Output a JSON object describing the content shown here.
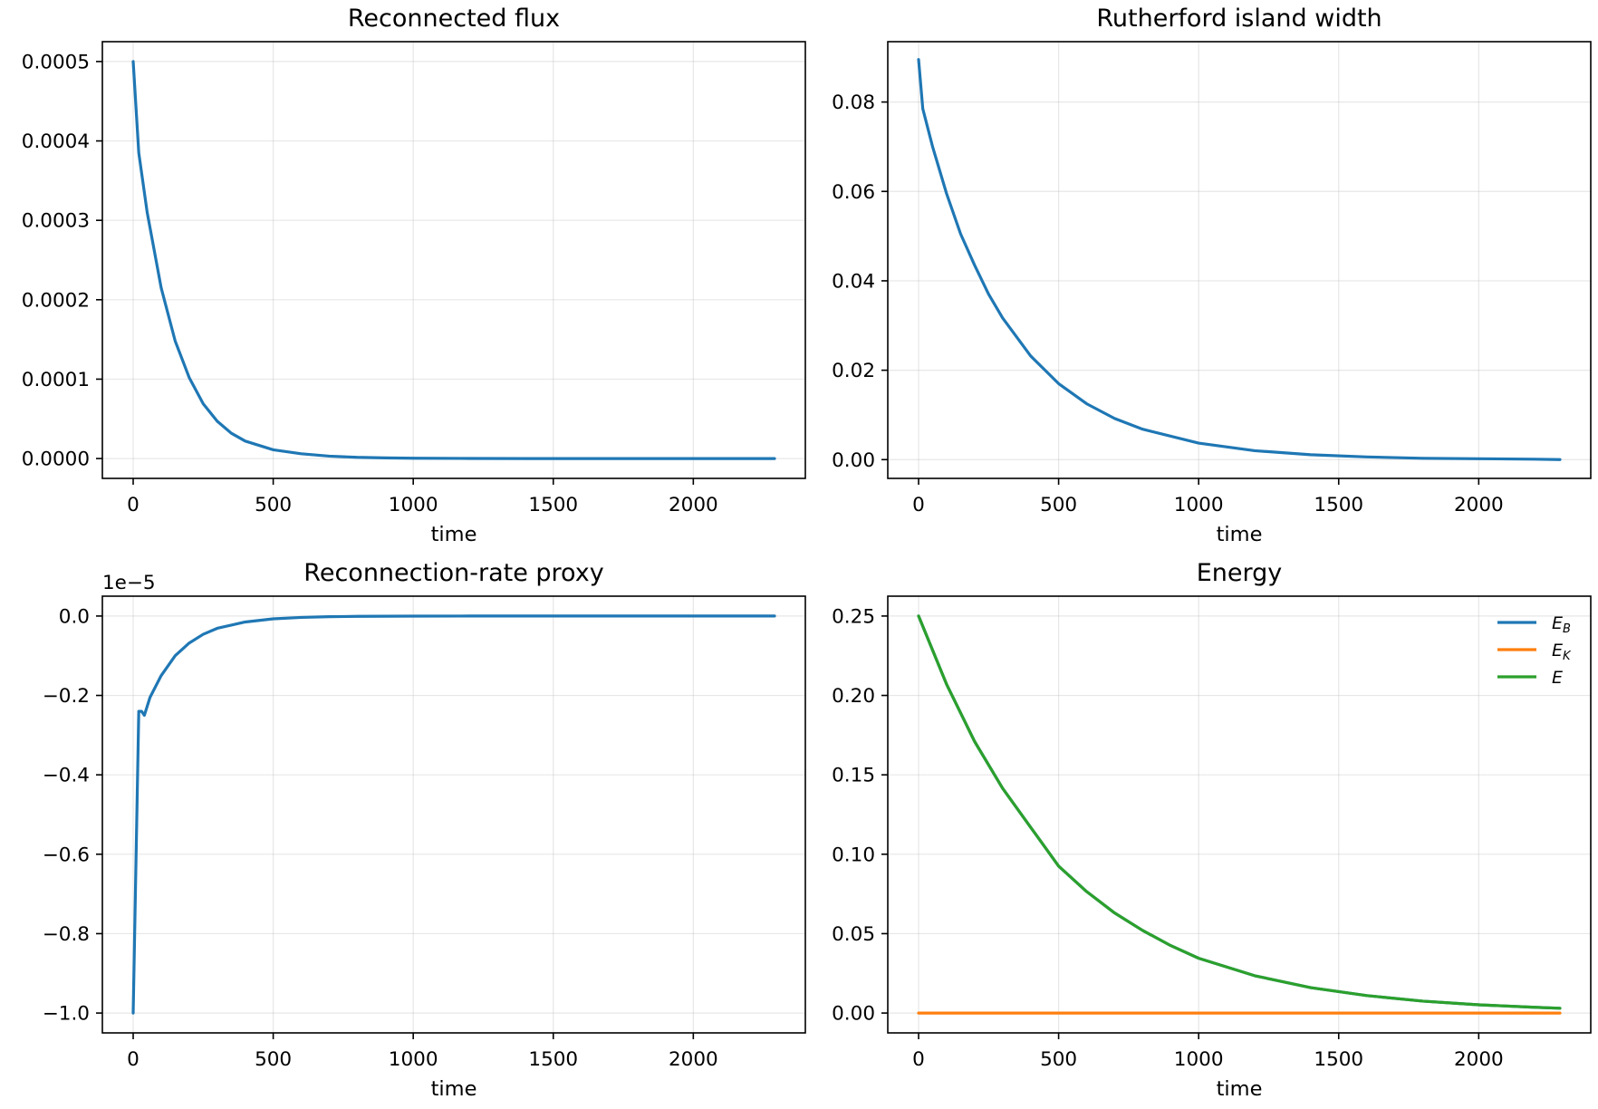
{
  "chart_data": [
    {
      "type": "line",
      "title": "Reconnected flux",
      "xlabel": "time",
      "ylabel": "",
      "xlim": [
        -110,
        2400
      ],
      "ylim": [
        -2.5e-05,
        0.000525
      ],
      "xticks": [
        0,
        500,
        1000,
        1500,
        2000
      ],
      "xtick_labels": [
        "0",
        "500",
        "1000",
        "1500",
        "2000"
      ],
      "yticks": [
        0,
        0.0001,
        0.0002,
        0.0003,
        0.0004,
        0.0005
      ],
      "ytick_labels": [
        "0.0000",
        "0.0001",
        "0.0002",
        "0.0003",
        "0.0004",
        "0.0005"
      ],
      "offset_text": "",
      "grid": true,
      "series": [
        {
          "color": "#1f77b4",
          "x": [
            0,
            20,
            50,
            100,
            150,
            200,
            250,
            300,
            350,
            400,
            500,
            600,
            700,
            800,
            900,
            1000,
            1200,
            1400,
            1600,
            1800,
            2000,
            2200,
            2290
          ],
          "y": [
            0.0005,
            0.000385,
            0.00031,
            0.000215,
            0.000148,
            0.000102,
            6.9e-05,
            4.7e-05,
            3.2e-05,
            2.2e-05,
            1.1e-05,
            6e-06,
            3e-06,
            1.5e-06,
            8e-07,
            4e-07,
            1e-07,
            0,
            0,
            0,
            0,
            0,
            0
          ]
        }
      ]
    },
    {
      "type": "line",
      "title": "Rutherford island width",
      "xlabel": "time",
      "ylabel": "",
      "xlim": [
        -110,
        2400
      ],
      "ylim": [
        -0.0042,
        0.0935
      ],
      "xticks": [
        0,
        500,
        1000,
        1500,
        2000
      ],
      "xtick_labels": [
        "0",
        "500",
        "1000",
        "1500",
        "2000"
      ],
      "yticks": [
        0,
        0.02,
        0.04,
        0.06,
        0.08
      ],
      "ytick_labels": [
        "0.00",
        "0.02",
        "0.04",
        "0.06",
        "0.08"
      ],
      "offset_text": "",
      "grid": true,
      "series": [
        {
          "color": "#1f77b4",
          "x": [
            0,
            15,
            50,
            100,
            150,
            200,
            250,
            300,
            400,
            500,
            600,
            700,
            800,
            1000,
            1200,
            1400,
            1600,
            1800,
            2000,
            2200,
            2290
          ],
          "y": [
            0.0895,
            0.0785,
            0.07,
            0.0595,
            0.0505,
            0.0435,
            0.037,
            0.0317,
            0.0232,
            0.017,
            0.0125,
            0.0092,
            0.0068,
            0.0037,
            0.002,
            0.0011,
            0.0006,
            0.0003,
            0.0002,
            0.0001,
            0
          ]
        }
      ]
    },
    {
      "type": "line",
      "title": "Reconnection-rate proxy",
      "xlabel": "time",
      "ylabel": "",
      "xlim": [
        -110,
        2400
      ],
      "ylim": [
        -1.05,
        0.05
      ],
      "xticks": [
        0,
        500,
        1000,
        1500,
        2000
      ],
      "xtick_labels": [
        "0",
        "500",
        "1000",
        "1500",
        "2000"
      ],
      "yticks": [
        0,
        -0.2,
        -0.4,
        -0.6,
        -0.8,
        -1.0
      ],
      "ytick_labels": [
        "0.0",
        "−0.2",
        "−0.4",
        "−0.6",
        "−0.8",
        "−1.0"
      ],
      "offset_text": "1e−5",
      "grid": true,
      "series": [
        {
          "color": "#1f77b4",
          "x": [
            0,
            20,
            30,
            40,
            60,
            100,
            150,
            200,
            250,
            300,
            400,
            500,
            600,
            700,
            800,
            1000,
            1200,
            1500,
            2000,
            2290
          ],
          "y": [
            -1.0,
            -0.24,
            -0.24,
            -0.25,
            -0.205,
            -0.15,
            -0.1,
            -0.068,
            -0.046,
            -0.031,
            -0.015,
            -0.007,
            -0.0035,
            -0.0017,
            -0.0008,
            -0.0002,
            0,
            0,
            0,
            0
          ]
        }
      ]
    },
    {
      "type": "line",
      "title": "Energy",
      "xlabel": "time",
      "ylabel": "",
      "xlim": [
        -110,
        2400
      ],
      "ylim": [
        -0.0125,
        0.2625
      ],
      "xticks": [
        0,
        500,
        1000,
        1500,
        2000
      ],
      "xtick_labels": [
        "0",
        "500",
        "1000",
        "1500",
        "2000"
      ],
      "yticks": [
        0,
        0.05,
        0.1,
        0.15,
        0.2,
        0.25
      ],
      "ytick_labels": [
        "0.00",
        "0.05",
        "0.10",
        "0.15",
        "0.20",
        "0.25"
      ],
      "offset_text": "",
      "grid": true,
      "legend_position": "upper-right",
      "series": [
        {
          "name": "E",
          "name_sub": "B",
          "color": "#1f77b4",
          "x": [
            0,
            100,
            200,
            300,
            400,
            500,
            600,
            700,
            800,
            900,
            1000,
            1200,
            1400,
            1600,
            1800,
            2000,
            2200,
            2290
          ],
          "y": [
            0.25,
            0.207,
            0.171,
            0.1415,
            0.117,
            0.0925,
            0.0765,
            0.063,
            0.052,
            0.0425,
            0.0345,
            0.0235,
            0.016,
            0.011,
            0.0075,
            0.0052,
            0.0036,
            0.003
          ]
        },
        {
          "name": "E",
          "name_sub": "K",
          "color": "#ff7f0e",
          "x": [
            0,
            2290
          ],
          "y": [
            0,
            0
          ]
        },
        {
          "name": "E",
          "name_sub": "",
          "color": "#2ca02c",
          "x": [
            0,
            100,
            200,
            300,
            400,
            500,
            600,
            700,
            800,
            900,
            1000,
            1200,
            1400,
            1600,
            1800,
            2000,
            2200,
            2290
          ],
          "y": [
            0.25,
            0.207,
            0.171,
            0.1415,
            0.117,
            0.0925,
            0.0765,
            0.063,
            0.052,
            0.0425,
            0.0345,
            0.0235,
            0.016,
            0.011,
            0.0075,
            0.0052,
            0.0036,
            0.003
          ]
        }
      ]
    }
  ]
}
